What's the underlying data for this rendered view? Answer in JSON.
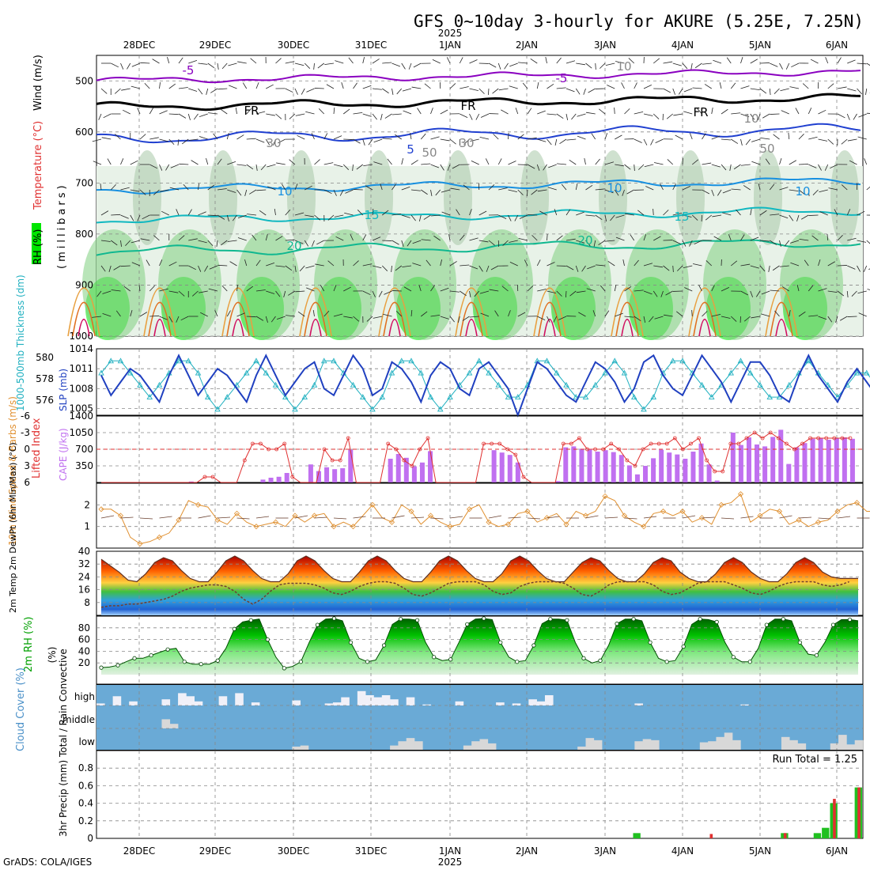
{
  "title": "GFS 0~10day 3-hourly for AKURE (5.25E, 7.25N)",
  "year": "2025",
  "days": [
    "28DEC",
    "29DEC",
    "30DEC",
    "31DEC",
    "1JAN",
    "2JAN",
    "3JAN",
    "4JAN",
    "5JAN",
    "6JAN"
  ],
  "footer": "GrADS: COLA/IGES",
  "colors": {
    "rh_green": "#00e600",
    "temp_orange": "#e09030",
    "cape_purple": "#c070f0",
    "slp_blue": "#2040c0",
    "thick_cyan": "#20b0c0",
    "li_red": "#e03030",
    "cloud_blue": "#6aaad6",
    "precip_green": "#20c020",
    "precip_red": "#e03030"
  },
  "chart_data": [
    {
      "id": "upper_air",
      "type": "heatmap",
      "ylabel_parts": [
        "RH (%)",
        "Temperature (°C)",
        "Wind (m/s)",
        "(millibars)"
      ],
      "y_ticks": [
        "500",
        "600",
        "700",
        "800",
        "900",
        "1000"
      ],
      "ylim": [
        1000,
        450
      ],
      "contour_labels": [
        "-5",
        "-5",
        "FR",
        "FR",
        "FR",
        "5",
        "10",
        "10",
        "10",
        "15",
        "15",
        "20",
        "20",
        "30",
        "30",
        "50",
        "10",
        "10",
        "50"
      ]
    },
    {
      "id": "slp_thickness",
      "type": "line",
      "ylabel_left": "1000-500mb Thickness (dm)",
      "ylabel_right": "SLP (mb)",
      "thick_ticks": [
        "580",
        "578",
        "576"
      ],
      "slp_ticks": [
        "1014",
        "1011",
        "1008",
        "1005"
      ],
      "slp_range": [
        1004,
        1014
      ],
      "thick_range": [
        575.5,
        581
      ],
      "series": [
        {
          "name": "SLP",
          "values": [
            1010,
            1007,
            1009,
            1011,
            1010,
            1008,
            1006,
            1010,
            1013,
            1010,
            1007,
            1009,
            1011,
            1010,
            1008,
            1006,
            1010,
            1013,
            1010,
            1007,
            1009,
            1011,
            1012,
            1008,
            1007,
            1010,
            1013,
            1011,
            1007,
            1008,
            1012,
            1011,
            1009,
            1006,
            1010,
            1012,
            1011,
            1008,
            1007,
            1011,
            1012,
            1010,
            1008,
            1004,
            1008,
            1012,
            1011,
            1009,
            1007,
            1006,
            1009,
            1012,
            1011,
            1009,
            1006,
            1008,
            1012,
            1013,
            1010,
            1008,
            1007,
            1010,
            1013,
            1011,
            1009,
            1006,
            1009,
            1012,
            1012,
            1010,
            1007,
            1006,
            1010,
            1013,
            1010,
            1008,
            1006,
            1009,
            1011,
            1009,
            1007,
            1008,
            1010
          ]
        },
        {
          "name": "Thickness",
          "values": [
            579,
            580,
            580,
            579,
            578,
            577,
            578,
            579,
            580,
            580,
            579,
            577,
            576,
            577,
            578,
            579,
            580,
            579,
            578,
            577,
            576,
            577,
            578,
            580,
            580,
            579,
            578,
            577,
            576,
            577,
            579,
            580,
            580,
            579,
            577,
            576,
            577,
            578,
            579,
            580,
            579,
            578,
            577,
            577,
            578,
            580,
            580,
            579,
            578,
            577,
            577,
            578,
            579,
            580,
            579,
            577,
            576,
            577,
            579,
            580,
            580,
            579,
            578,
            577,
            578,
            579,
            580,
            579,
            578,
            577,
            577,
            578,
            579,
            580,
            579,
            578,
            577,
            578,
            579,
            579,
            578,
            577,
            576
          ]
        }
      ]
    },
    {
      "id": "li_cape",
      "type": "bar",
      "ylabel_left": "Lifted Index",
      "ylabel_right": "CAPE (J/kg)",
      "li_ticks": [
        "-6",
        "-3",
        "0",
        "3",
        "6"
      ],
      "cape_ticks": [
        "1400",
        "1050",
        "700",
        "350"
      ],
      "cape_values": [
        0,
        0,
        0,
        0,
        0,
        0,
        0,
        0,
        0,
        0,
        0,
        20,
        0,
        0,
        0,
        0,
        0,
        0,
        0,
        0,
        60,
        100,
        120,
        200,
        0,
        0,
        380,
        240,
        320,
        280,
        300,
        690,
        0,
        0,
        0,
        0,
        500,
        600,
        520,
        340,
        420,
        660,
        0,
        0,
        0,
        0,
        0,
        0,
        0,
        680,
        630,
        580,
        420,
        0,
        0,
        0,
        0,
        30,
        740,
        760,
        710,
        690,
        650,
        680,
        640,
        580,
        360,
        170,
        350,
        510,
        690,
        630,
        590,
        500,
        650,
        820,
        380,
        40,
        0,
        1050,
        790,
        950,
        800,
        760,
        960,
        1110,
        390,
        740,
        830,
        920,
        940,
        900,
        930,
        950,
        920
      ],
      "li_values": [
        6,
        6,
        6,
        6,
        6,
        6,
        6,
        6,
        6,
        6,
        6,
        6,
        6,
        5,
        5,
        6,
        6,
        6,
        2,
        -1,
        -1,
        0,
        0,
        -1,
        5,
        6,
        6,
        6,
        0,
        2,
        2,
        -2,
        6,
        6,
        6,
        6,
        -1,
        0,
        2,
        3,
        0,
        -2,
        6,
        6,
        6,
        6,
        6,
        6,
        -1,
        -1,
        -1,
        0,
        1,
        5,
        6,
        6,
        6,
        6,
        -1,
        -1,
        -2,
        0,
        0,
        0,
        -1,
        0,
        2,
        3,
        0,
        -1,
        -1,
        -1,
        -2,
        0,
        -1,
        -2,
        2,
        4,
        4,
        -1,
        -1,
        -2,
        -3,
        -2,
        -3,
        -2,
        -1,
        0,
        -1,
        -2,
        -2,
        -2,
        -2,
        -2,
        -2
      ],
      "li_range": [
        6,
        -6
      ],
      "cape_range": [
        0,
        1400
      ]
    },
    {
      "id": "wind10m",
      "type": "line",
      "ylabel": "10m Wind Speed & Barbs (m/s)",
      "y_ticks": [
        "1",
        "2"
      ],
      "ylim": [
        0,
        3
      ],
      "values": [
        1.8,
        1.8,
        1.5,
        0.5,
        0.2,
        0.3,
        0.5,
        0.7,
        1.3,
        2.2,
        2.0,
        1.9,
        1.3,
        1.1,
        1.6,
        1.2,
        1.0,
        1.1,
        1.2,
        1.0,
        1.5,
        1.2,
        1.5,
        1.6,
        1.0,
        1.2,
        1.0,
        1.5,
        2.0,
        1.4,
        1.2,
        2.0,
        1.7,
        1.1,
        1.5,
        1.2,
        1.0,
        1.1,
        1.8,
        2.0,
        1.2,
        1.0,
        1.1,
        1.6,
        1.7,
        1.2,
        1.4,
        1.6,
        1.1,
        1.7,
        1.5,
        1.7,
        2.4,
        2.2,
        1.5,
        1.2,
        1.0,
        1.6,
        1.7,
        1.5,
        1.7,
        1.2,
        1.4,
        1.1,
        2.0,
        2.1,
        2.5,
        1.2,
        1.5,
        1.8,
        1.7,
        1.1,
        1.3,
        1.0,
        1.2,
        1.3,
        1.7,
        2.0,
        2.1,
        1.7,
        1.7,
        1.9,
        2.2
      ]
    },
    {
      "id": "temp2m",
      "type": "area",
      "ylabel": "2m Temp 2m DewPt (6hr Min/Max) (°C)",
      "y_ticks": [
        "8",
        "16",
        "24",
        "32",
        "40"
      ],
      "ylim": [
        0,
        40
      ],
      "temp": [
        35,
        31,
        27,
        22,
        21,
        26,
        33,
        36,
        34,
        28,
        23,
        21,
        21,
        27,
        34,
        37,
        34,
        28,
        23,
        21,
        21,
        26,
        34,
        37,
        34,
        28,
        23,
        21,
        21,
        27,
        34,
        37,
        34,
        28,
        23,
        21,
        21,
        27,
        34,
        37,
        34,
        28,
        23,
        21,
        21,
        26,
        34,
        37,
        34,
        28,
        23,
        21,
        21,
        27,
        33,
        36,
        34,
        28,
        23,
        21,
        21,
        26,
        33,
        36,
        34,
        27,
        23,
        21,
        21,
        26,
        33,
        36,
        33,
        27,
        23,
        21,
        21,
        26,
        33,
        36,
        33,
        27,
        24,
        23,
        23,
        23
      ],
      "dewpt": [
        5,
        6,
        6,
        7,
        7,
        8,
        9,
        10,
        12,
        15,
        17,
        18,
        19,
        19,
        18,
        15,
        10,
        7,
        10,
        15,
        19,
        20,
        20,
        20,
        19,
        17,
        14,
        13,
        15,
        18,
        20,
        21,
        21,
        20,
        17,
        13,
        12,
        14,
        17,
        20,
        21,
        21,
        21,
        19,
        15,
        13,
        14,
        18,
        20,
        21,
        21,
        21,
        20,
        17,
        13,
        12,
        15,
        19,
        21,
        21,
        21,
        21,
        19,
        15,
        13,
        14,
        17,
        20,
        21,
        21,
        21,
        19,
        17,
        14,
        13,
        15,
        18,
        20,
        21,
        21,
        21,
        19,
        18,
        19,
        21
      ]
    },
    {
      "id": "rh2m",
      "type": "area",
      "ylabel": "2m RH (%)",
      "y_ticks": [
        "20",
        "40",
        "60",
        "80"
      ],
      "ylim": [
        0,
        100
      ],
      "values": [
        12,
        13,
        16,
        22,
        28,
        28,
        33,
        38,
        43,
        45,
        22,
        18,
        18,
        18,
        24,
        45,
        78,
        90,
        93,
        95,
        60,
        30,
        11,
        14,
        22,
        55,
        85,
        95,
        96,
        92,
        55,
        28,
        22,
        25,
        50,
        86,
        95,
        95,
        93,
        55,
        30,
        24,
        26,
        55,
        86,
        95,
        96,
        94,
        55,
        30,
        22,
        24,
        50,
        87,
        95,
        95,
        93,
        55,
        28,
        20,
        24,
        50,
        87,
        95,
        95,
        92,
        55,
        28,
        22,
        24,
        48,
        86,
        95,
        94,
        90,
        55,
        30,
        22,
        22,
        45,
        85,
        95,
        95,
        92,
        55,
        35,
        33,
        55,
        85,
        94,
        94,
        92
      ]
    },
    {
      "id": "cloud",
      "type": "bar",
      "ylabel": "Cloud Cover (%)",
      "levels": [
        "high",
        "middle",
        "low"
      ],
      "high": [
        10,
        0,
        45,
        0,
        20,
        0,
        0,
        0,
        30,
        0,
        60,
        45,
        20,
        0,
        0,
        45,
        0,
        60,
        0,
        15,
        0,
        0,
        0,
        0,
        25,
        0,
        0,
        0,
        10,
        15,
        40,
        0,
        70,
        50,
        40,
        50,
        30,
        0,
        40,
        0,
        5,
        0,
        0,
        0,
        20,
        0,
        0,
        0,
        0,
        15,
        0,
        10,
        0,
        30,
        20,
        50,
        0,
        0,
        0,
        0,
        0,
        0,
        0,
        0,
        0,
        0,
        10,
        0,
        0,
        0,
        0,
        0,
        0,
        0,
        0,
        0,
        0,
        0,
        0,
        5,
        0,
        0,
        0,
        0,
        0,
        0,
        0,
        0,
        0,
        0,
        0,
        0,
        0,
        0
      ],
      "middle": [
        0,
        0,
        0,
        0,
        0,
        0,
        0,
        0,
        40,
        20,
        0,
        0,
        0,
        0,
        0,
        0,
        0,
        0,
        0,
        0,
        0,
        0,
        0,
        0,
        0,
        0,
        0,
        0,
        0,
        0,
        0,
        0,
        0,
        0,
        0,
        0,
        0,
        0,
        0,
        0,
        0,
        0,
        0,
        0,
        0,
        0,
        0,
        0,
        0,
        0,
        0,
        0,
        0,
        0,
        0,
        0,
        0,
        0,
        0,
        0,
        0,
        0,
        0,
        0,
        0,
        0,
        0,
        0,
        0,
        0,
        0,
        0,
        0,
        0,
        0,
        0,
        0,
        0,
        0,
        0,
        0,
        0,
        0,
        0,
        0,
        0,
        0,
        0,
        0,
        0,
        0,
        0,
        0,
        0
      ],
      "low": [
        0,
        0,
        0,
        0,
        0,
        0,
        0,
        0,
        0,
        0,
        0,
        0,
        0,
        0,
        0,
        0,
        0,
        0,
        0,
        0,
        0,
        0,
        0,
        0,
        15,
        20,
        0,
        0,
        0,
        0,
        0,
        0,
        0,
        0,
        0,
        0,
        20,
        40,
        55,
        40,
        0,
        0,
        0,
        0,
        0,
        20,
        40,
        50,
        30,
        0,
        0,
        0,
        0,
        0,
        0,
        0,
        0,
        0,
        0,
        15,
        55,
        45,
        0,
        0,
        0,
        0,
        40,
        50,
        45,
        0,
        0,
        0,
        0,
        0,
        35,
        40,
        60,
        80,
        45,
        0,
        0,
        0,
        0,
        0,
        60,
        45,
        30,
        0,
        0,
        0,
        30,
        70,
        25,
        45,
        0,
        20,
        10,
        15,
        0
      ]
    },
    {
      "id": "precip",
      "type": "bar",
      "ylabel": "3hr Precip (mm) Total / Rain Convective",
      "y_ticks": [
        "0",
        "0.2",
        "0.4",
        "0.6",
        "0.8"
      ],
      "ylim": [
        0,
        1.0
      ],
      "run_total": "Run Total = 1.25",
      "total": [
        0,
        0,
        0,
        0,
        0,
        0,
        0,
        0,
        0,
        0,
        0,
        0,
        0,
        0,
        0,
        0,
        0,
        0,
        0,
        0,
        0,
        0,
        0,
        0,
        0,
        0,
        0,
        0,
        0,
        0,
        0,
        0,
        0,
        0,
        0,
        0,
        0,
        0,
        0,
        0,
        0,
        0,
        0,
        0,
        0,
        0,
        0,
        0,
        0,
        0,
        0,
        0,
        0,
        0,
        0,
        0,
        0,
        0,
        0,
        0,
        0,
        0,
        0,
        0,
        0,
        0.06,
        0,
        0,
        0,
        0,
        0,
        0,
        0,
        0,
        0,
        0,
        0,
        0,
        0,
        0,
        0,
        0,
        0,
        0.06,
        0,
        0,
        0,
        0.06,
        0.12,
        0.4,
        0,
        0,
        0.58
      ],
      "convective": [
        0,
        0,
        0,
        0,
        0,
        0,
        0,
        0,
        0,
        0,
        0,
        0,
        0,
        0,
        0,
        0,
        0,
        0,
        0,
        0,
        0,
        0,
        0,
        0,
        0,
        0,
        0,
        0,
        0,
        0,
        0,
        0,
        0,
        0,
        0,
        0,
        0,
        0,
        0,
        0,
        0,
        0,
        0,
        0,
        0,
        0,
        0,
        0,
        0,
        0,
        0,
        0,
        0,
        0,
        0,
        0,
        0,
        0,
        0,
        0,
        0,
        0,
        0,
        0,
        0,
        0,
        0,
        0,
        0,
        0,
        0,
        0,
        0,
        0,
        0.05,
        0,
        0,
        0,
        0,
        0,
        0,
        0,
        0,
        0.06,
        0,
        0,
        0,
        0,
        0,
        0.45,
        0,
        0,
        0.58
      ]
    }
  ]
}
